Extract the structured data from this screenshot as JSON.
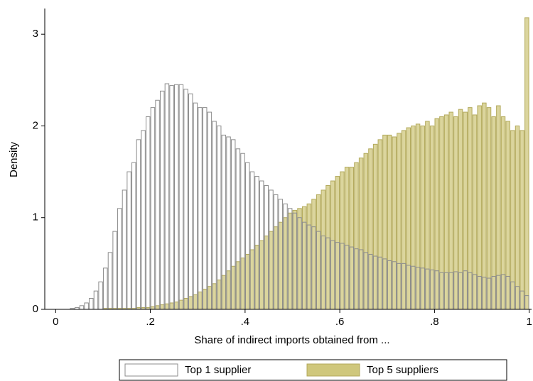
{
  "chart_data": {
    "type": "histogram",
    "xlabel": "Share of indirect imports obtained from ...",
    "ylabel": "Density",
    "bins": [
      0,
      0.01,
      0.02,
      0.03,
      0.04,
      0.05,
      0.06,
      0.07,
      0.08,
      0.09,
      0.1,
      0.11,
      0.12,
      0.13,
      0.14,
      0.15,
      0.16,
      0.17,
      0.18,
      0.19,
      0.2,
      0.21,
      0.22,
      0.23,
      0.24,
      0.25,
      0.26,
      0.27,
      0.28,
      0.29,
      0.3,
      0.31,
      0.32,
      0.33,
      0.34,
      0.35,
      0.36,
      0.37,
      0.38,
      0.39,
      0.4,
      0.41,
      0.42,
      0.43,
      0.44,
      0.45,
      0.46,
      0.47,
      0.48,
      0.49,
      0.5,
      0.51,
      0.52,
      0.53,
      0.54,
      0.55,
      0.56,
      0.57,
      0.58,
      0.59,
      0.6,
      0.61,
      0.62,
      0.63,
      0.64,
      0.65,
      0.66,
      0.67,
      0.68,
      0.69,
      0.7,
      0.71,
      0.72,
      0.73,
      0.74,
      0.75,
      0.76,
      0.77,
      0.78,
      0.79,
      0.8,
      0.81,
      0.82,
      0.83,
      0.84,
      0.85,
      0.86,
      0.87,
      0.88,
      0.89,
      0.9,
      0.91,
      0.92,
      0.93,
      0.94,
      0.95,
      0.96,
      0.97,
      0.98,
      0.99,
      1
    ],
    "series": [
      {
        "name": "Top 5 suppliers",
        "color": "#cfc77c",
        "edge": "#b3aa5c",
        "opacity": 0.75,
        "values": [
          0,
          0,
          0,
          0,
          0,
          0,
          0,
          0,
          0,
          0,
          0.01,
          0.01,
          0.01,
          0.01,
          0.01,
          0.01,
          0.01,
          0.02,
          0.02,
          0.02,
          0.03,
          0.04,
          0.05,
          0.06,
          0.07,
          0.08,
          0.1,
          0.12,
          0.14,
          0.16,
          0.19,
          0.22,
          0.25,
          0.28,
          0.32,
          0.37,
          0.42,
          0.47,
          0.52,
          0.56,
          0.6,
          0.65,
          0.7,
          0.75,
          0.8,
          0.85,
          0.9,
          0.95,
          1.0,
          1.05,
          1.08,
          1.1,
          1.12,
          1.15,
          1.2,
          1.25,
          1.3,
          1.35,
          1.4,
          1.45,
          1.5,
          1.55,
          1.55,
          1.6,
          1.65,
          1.7,
          1.75,
          1.8,
          1.85,
          1.9,
          1.9,
          1.88,
          1.92,
          1.95,
          1.98,
          2.0,
          2.02,
          2.0,
          2.05,
          2.0,
          2.08,
          2.1,
          2.12,
          2.15,
          2.1,
          2.18,
          2.15,
          2.2,
          2.12,
          2.22,
          2.25,
          2.2,
          2.1,
          2.22,
          2.1,
          2.05,
          1.95,
          2.0,
          1.95,
          3.18
        ]
      },
      {
        "name": "Top 1 supplier",
        "color": "#8c8c8c",
        "edge": "#8c8c8c",
        "opacity": 1,
        "values": [
          0,
          0,
          0,
          0.01,
          0.02,
          0.04,
          0.07,
          0.12,
          0.2,
          0.3,
          0.45,
          0.62,
          0.85,
          1.1,
          1.3,
          1.5,
          1.6,
          1.85,
          1.95,
          2.1,
          2.2,
          2.28,
          2.38,
          2.46,
          2.44,
          2.45,
          2.45,
          2.4,
          2.35,
          2.25,
          2.2,
          2.2,
          2.15,
          2.05,
          2.0,
          1.9,
          1.88,
          1.85,
          1.75,
          1.7,
          1.6,
          1.5,
          1.45,
          1.4,
          1.35,
          1.3,
          1.25,
          1.2,
          1.15,
          1.1,
          1.05,
          1.0,
          0.95,
          0.92,
          0.9,
          0.85,
          0.8,
          0.78,
          0.75,
          0.73,
          0.72,
          0.7,
          0.68,
          0.66,
          0.65,
          0.62,
          0.6,
          0.58,
          0.57,
          0.55,
          0.53,
          0.52,
          0.5,
          0.5,
          0.48,
          0.47,
          0.46,
          0.45,
          0.44,
          0.43,
          0.42,
          0.4,
          0.4,
          0.4,
          0.41,
          0.4,
          0.42,
          0.4,
          0.38,
          0.36,
          0.35,
          0.34,
          0.36,
          0.37,
          0.38,
          0.36,
          0.3,
          0.25,
          0.2,
          0.15
        ]
      }
    ],
    "legend_order": [
      1,
      0
    ],
    "xlim": [
      -0.023,
      1.005
    ],
    "ylim": [
      0,
      3.28
    ],
    "xticks": [
      0,
      {
        "value": 0.2,
        "label": ".2"
      },
      {
        "value": 0.4,
        "label": ".4"
      },
      {
        "value": 0.6,
        "label": ".6"
      },
      {
        "value": 0.8,
        "label": ".8"
      },
      1
    ],
    "yticks": [
      0,
      1,
      2,
      3
    ]
  }
}
